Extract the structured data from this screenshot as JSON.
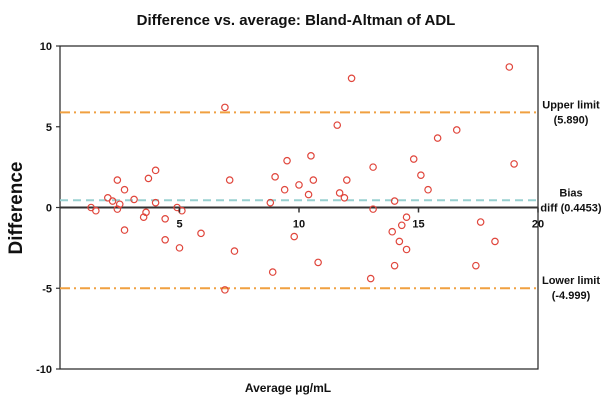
{
  "chart_data": {
    "type": "scatter",
    "title": "Difference vs. average: Bland-Altman of ADL",
    "xlabel": "Average μg/mL",
    "ylabel": "Difference",
    "xlim": [
      0,
      20
    ],
    "ylim": [
      -10,
      10
    ],
    "x_ticks": [
      5,
      10,
      15,
      20
    ],
    "y_ticks": [
      10,
      5,
      0,
      -5,
      -10
    ],
    "grid": false,
    "marker_color": "#e0463c",
    "points": [
      {
        "x": 1.3,
        "y": 0.0
      },
      {
        "x": 1.5,
        "y": -0.2
      },
      {
        "x": 2.0,
        "y": 0.6
      },
      {
        "x": 2.2,
        "y": 0.4
      },
      {
        "x": 2.4,
        "y": 1.7
      },
      {
        "x": 2.4,
        "y": -0.1
      },
      {
        "x": 2.5,
        "y": 0.2
      },
      {
        "x": 2.7,
        "y": 1.1
      },
      {
        "x": 2.7,
        "y": -1.4
      },
      {
        "x": 3.1,
        "y": 0.5
      },
      {
        "x": 3.5,
        "y": -0.6
      },
      {
        "x": 3.6,
        "y": -0.3
      },
      {
        "x": 3.7,
        "y": 1.8
      },
      {
        "x": 4.0,
        "y": 2.3
      },
      {
        "x": 4.0,
        "y": 0.3
      },
      {
        "x": 4.4,
        "y": -0.7
      },
      {
        "x": 4.4,
        "y": -2.0
      },
      {
        "x": 4.9,
        "y": 0.0
      },
      {
        "x": 5.0,
        "y": -2.5
      },
      {
        "x": 5.1,
        "y": -0.2
      },
      {
        "x": 5.9,
        "y": -1.6
      },
      {
        "x": 6.9,
        "y": 6.2
      },
      {
        "x": 6.9,
        "y": -5.1
      },
      {
        "x": 7.1,
        "y": 1.7
      },
      {
        "x": 7.3,
        "y": -2.7
      },
      {
        "x": 8.8,
        "y": 0.3
      },
      {
        "x": 8.9,
        "y": -4.0
      },
      {
        "x": 9.0,
        "y": 1.9
      },
      {
        "x": 9.4,
        "y": 1.1
      },
      {
        "x": 9.5,
        "y": 2.9
      },
      {
        "x": 9.8,
        "y": -1.8
      },
      {
        "x": 10.0,
        "y": 1.4
      },
      {
        "x": 10.4,
        "y": 0.8
      },
      {
        "x": 10.5,
        "y": 3.2
      },
      {
        "x": 10.6,
        "y": 1.7
      },
      {
        "x": 10.8,
        "y": -3.4
      },
      {
        "x": 11.6,
        "y": 5.1
      },
      {
        "x": 11.7,
        "y": 0.9
      },
      {
        "x": 11.9,
        "y": 0.6
      },
      {
        "x": 12.0,
        "y": 1.7
      },
      {
        "x": 12.2,
        "y": 8.0
      },
      {
        "x": 13.0,
        "y": -4.4
      },
      {
        "x": 13.1,
        "y": 2.5
      },
      {
        "x": 13.1,
        "y": -0.1
      },
      {
        "x": 13.9,
        "y": -1.5
      },
      {
        "x": 14.0,
        "y": 0.4
      },
      {
        "x": 14.0,
        "y": -3.6
      },
      {
        "x": 14.2,
        "y": -2.1
      },
      {
        "x": 14.3,
        "y": -1.1
      },
      {
        "x": 14.5,
        "y": -2.6
      },
      {
        "x": 14.5,
        "y": -0.6
      },
      {
        "x": 14.8,
        "y": 3.0
      },
      {
        "x": 15.1,
        "y": 2.0
      },
      {
        "x": 15.4,
        "y": 1.1
      },
      {
        "x": 15.8,
        "y": 4.3
      },
      {
        "x": 16.6,
        "y": 4.8
      },
      {
        "x": 17.4,
        "y": -3.6
      },
      {
        "x": 17.6,
        "y": -0.9
      },
      {
        "x": 18.2,
        "y": -2.1
      },
      {
        "x": 18.8,
        "y": 8.7
      },
      {
        "x": 19.0,
        "y": 2.7
      }
    ],
    "reference_lines": [
      {
        "name": "upper",
        "y": 5.89,
        "label1": "Upper limit",
        "label2": "(5.890)",
        "color": "#f0a040",
        "style": "dash-dot"
      },
      {
        "name": "bias",
        "y": 0.4453,
        "label1": "Bias",
        "label2": "diff (0.4453)",
        "color": "#98d0d0",
        "style": "dashed"
      },
      {
        "name": "lower",
        "y": -4.999,
        "label1": "Lower limit",
        "label2": "(-4.999)",
        "color": "#f0a040",
        "style": "dash-dot"
      }
    ]
  }
}
